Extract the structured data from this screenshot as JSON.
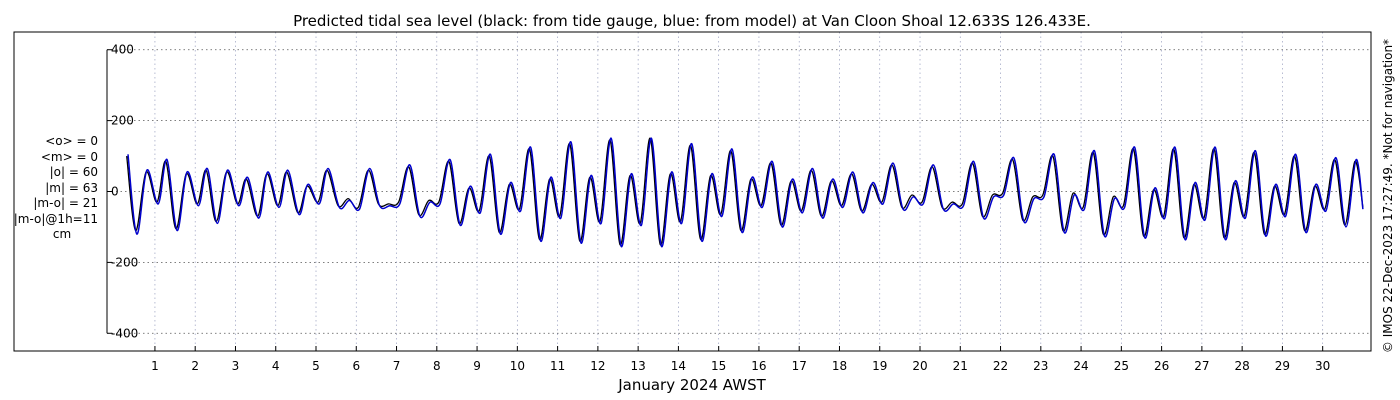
{
  "chart_data": {
    "type": "line",
    "title": "Predicted tidal sea level (black: from tide gauge, blue: from model) at Van Cloon Shoal 12.633S 126.433E.",
    "xlabel": "January 2024 AWST",
    "ylabel": "",
    "x_unit": "day of January 2024",
    "xlim": [
      -2.5,
      31.2
    ],
    "ylim": [
      -450,
      450
    ],
    "yticks": [
      -400,
      -200,
      0,
      200,
      400
    ],
    "xticks": [
      1,
      2,
      3,
      4,
      5,
      6,
      7,
      8,
      9,
      10,
      11,
      12,
      13,
      14,
      15,
      16,
      17,
      18,
      19,
      20,
      21,
      22,
      23,
      24,
      25,
      26,
      27,
      28,
      29,
      30
    ],
    "grid": true,
    "series": [
      {
        "name": "from tide gauge",
        "color": "#000000",
        "x": [
          0.3,
          0.52,
          0.78,
          1.05,
          1.27,
          1.52,
          1.78,
          2.05,
          2.27,
          2.52,
          2.78,
          3.05,
          3.27,
          3.55,
          3.78,
          4.05,
          4.27,
          4.55,
          4.78,
          5.05,
          5.27,
          5.55,
          5.8,
          6.05,
          6.3,
          6.55,
          6.8,
          7.05,
          7.3,
          7.55,
          7.8,
          8.05,
          8.3,
          8.55,
          8.8,
          9.05,
          9.3,
          9.55,
          9.8,
          10.05,
          10.3,
          10.55,
          10.8,
          11.05,
          11.3,
          11.55,
          11.8,
          12.05,
          12.3,
          12.55,
          12.8,
          13.05,
          13.3,
          13.55,
          13.8,
          14.05,
          14.3,
          14.55,
          14.8,
          15.05,
          15.3,
          15.55,
          15.8,
          16.05,
          16.3,
          16.55,
          16.8,
          17.05,
          17.3,
          17.55,
          17.8,
          18.05,
          18.3,
          18.55,
          18.8,
          19.05,
          19.3,
          19.55,
          19.8,
          20.05,
          20.3,
          20.55,
          20.8,
          21.05,
          21.3,
          21.55,
          21.8,
          22.05,
          22.3,
          22.55,
          22.8,
          23.05,
          23.3,
          23.55,
          23.8,
          24.05,
          24.3,
          24.55,
          24.8,
          25.05,
          25.3,
          25.55,
          25.8,
          26.05,
          26.3,
          26.55,
          26.8,
          27.05,
          27.3,
          27.55,
          27.8,
          28.05,
          28.3,
          28.55,
          28.8,
          29.05,
          29.3,
          29.55,
          29.8,
          30.05,
          30.3,
          30.55,
          30.8,
          31.0
        ],
        "y": [
          100,
          -110,
          55,
          -30,
          85,
          -105,
          50,
          -35,
          60,
          -85,
          55,
          -35,
          35,
          -70,
          50,
          -40,
          55,
          -60,
          15,
          -30,
          60,
          -40,
          -20,
          -45,
          60,
          -35,
          -35,
          -30,
          70,
          -65,
          -25,
          -30,
          85,
          -90,
          10,
          -55,
          100,
          -115,
          20,
          -50,
          120,
          -135,
          35,
          -70,
          135,
          -140,
          40,
          -85,
          145,
          -150,
          45,
          -90,
          150,
          -150,
          50,
          -85,
          130,
          -135,
          45,
          -65,
          115,
          -110,
          35,
          -40,
          80,
          -95,
          30,
          -55,
          60,
          -70,
          30,
          -40,
          50,
          -55,
          20,
          -30,
          75,
          -45,
          -10,
          -30,
          70,
          -45,
          -30,
          -35,
          80,
          -70,
          -10,
          -5,
          90,
          -80,
          -15,
          -10,
          100,
          -110,
          -5,
          -45,
          110,
          -120,
          -15,
          -40,
          120,
          -125,
          5,
          -70,
          120,
          -130,
          20,
          -75,
          120,
          -130,
          25,
          -70,
          110,
          -120,
          15,
          -65,
          100,
          -110,
          15,
          -50,
          90,
          -95,
          85,
          -45
        ]
      },
      {
        "name": "from model",
        "color": "#0000cc",
        "x": [
          0.33,
          0.55,
          0.8,
          1.08,
          1.3,
          1.55,
          1.8,
          2.08,
          2.3,
          2.55,
          2.8,
          3.08,
          3.3,
          3.58,
          3.8,
          4.08,
          4.3,
          4.58,
          4.8,
          5.08,
          5.3,
          5.58,
          5.83,
          6.08,
          6.33,
          6.58,
          6.83,
          7.08,
          7.33,
          7.58,
          7.83,
          8.08,
          8.33,
          8.58,
          8.83,
          9.08,
          9.33,
          9.58,
          9.83,
          10.08,
          10.33,
          10.58,
          10.83,
          11.08,
          11.33,
          11.58,
          11.83,
          12.08,
          12.33,
          12.58,
          12.83,
          13.08,
          13.33,
          13.58,
          13.83,
          14.08,
          14.33,
          14.58,
          14.83,
          15.08,
          15.33,
          15.58,
          15.83,
          16.08,
          16.33,
          16.58,
          16.83,
          17.08,
          17.33,
          17.58,
          17.83,
          18.08,
          18.33,
          18.58,
          18.83,
          19.08,
          19.33,
          19.58,
          19.83,
          20.08,
          20.33,
          20.58,
          20.83,
          21.08,
          21.33,
          21.58,
          21.83,
          22.08,
          22.33,
          22.58,
          22.83,
          23.08,
          23.33,
          23.58,
          23.83,
          24.08,
          24.33,
          24.58,
          24.83,
          25.08,
          25.33,
          25.58,
          25.83,
          26.08,
          26.33,
          26.58,
          26.83,
          27.08,
          27.33,
          27.58,
          27.83,
          28.08,
          28.33,
          28.58,
          28.83,
          29.08,
          29.33,
          29.58,
          29.83,
          30.08,
          30.33,
          30.58,
          30.83,
          31.0
        ],
        "y": [
          105,
          -120,
          60,
          -35,
          90,
          -110,
          55,
          -40,
          65,
          -90,
          60,
          -40,
          40,
          -75,
          55,
          -45,
          60,
          -65,
          20,
          -35,
          65,
          -45,
          -25,
          -50,
          65,
          -40,
          -40,
          -35,
          75,
          -70,
          -30,
          -35,
          90,
          -95,
          15,
          -60,
          105,
          -120,
          25,
          -55,
          125,
          -140,
          40,
          -75,
          140,
          -145,
          45,
          -90,
          150,
          -155,
          50,
          -95,
          150,
          -155,
          55,
          -90,
          135,
          -140,
          50,
          -70,
          120,
          -115,
          40,
          -45,
          85,
          -100,
          35,
          -60,
          65,
          -75,
          35,
          -45,
          55,
          -60,
          25,
          -35,
          80,
          -50,
          -15,
          -35,
          75,
          -50,
          -35,
          -40,
          85,
          -75,
          -15,
          -10,
          95,
          -85,
          -20,
          -15,
          105,
          -115,
          -10,
          -50,
          115,
          -125,
          -20,
          -45,
          125,
          -130,
          10,
          -75,
          125,
          -135,
          25,
          -80,
          125,
          -135,
          30,
          -75,
          115,
          -125,
          20,
          -70,
          105,
          -115,
          20,
          -55,
          95,
          -100,
          90,
          -50
        ]
      }
    ],
    "stats_lines": [
      "<o> = 0",
      "<m> = 0",
      "|o| = 60",
      "|m| = 63",
      "|m-o| = 21",
      "|m-o|@1h=11",
      "cm"
    ],
    "credit": "© IMOS 22-Dec-2023 17:27:49. *Not for navigation*"
  }
}
